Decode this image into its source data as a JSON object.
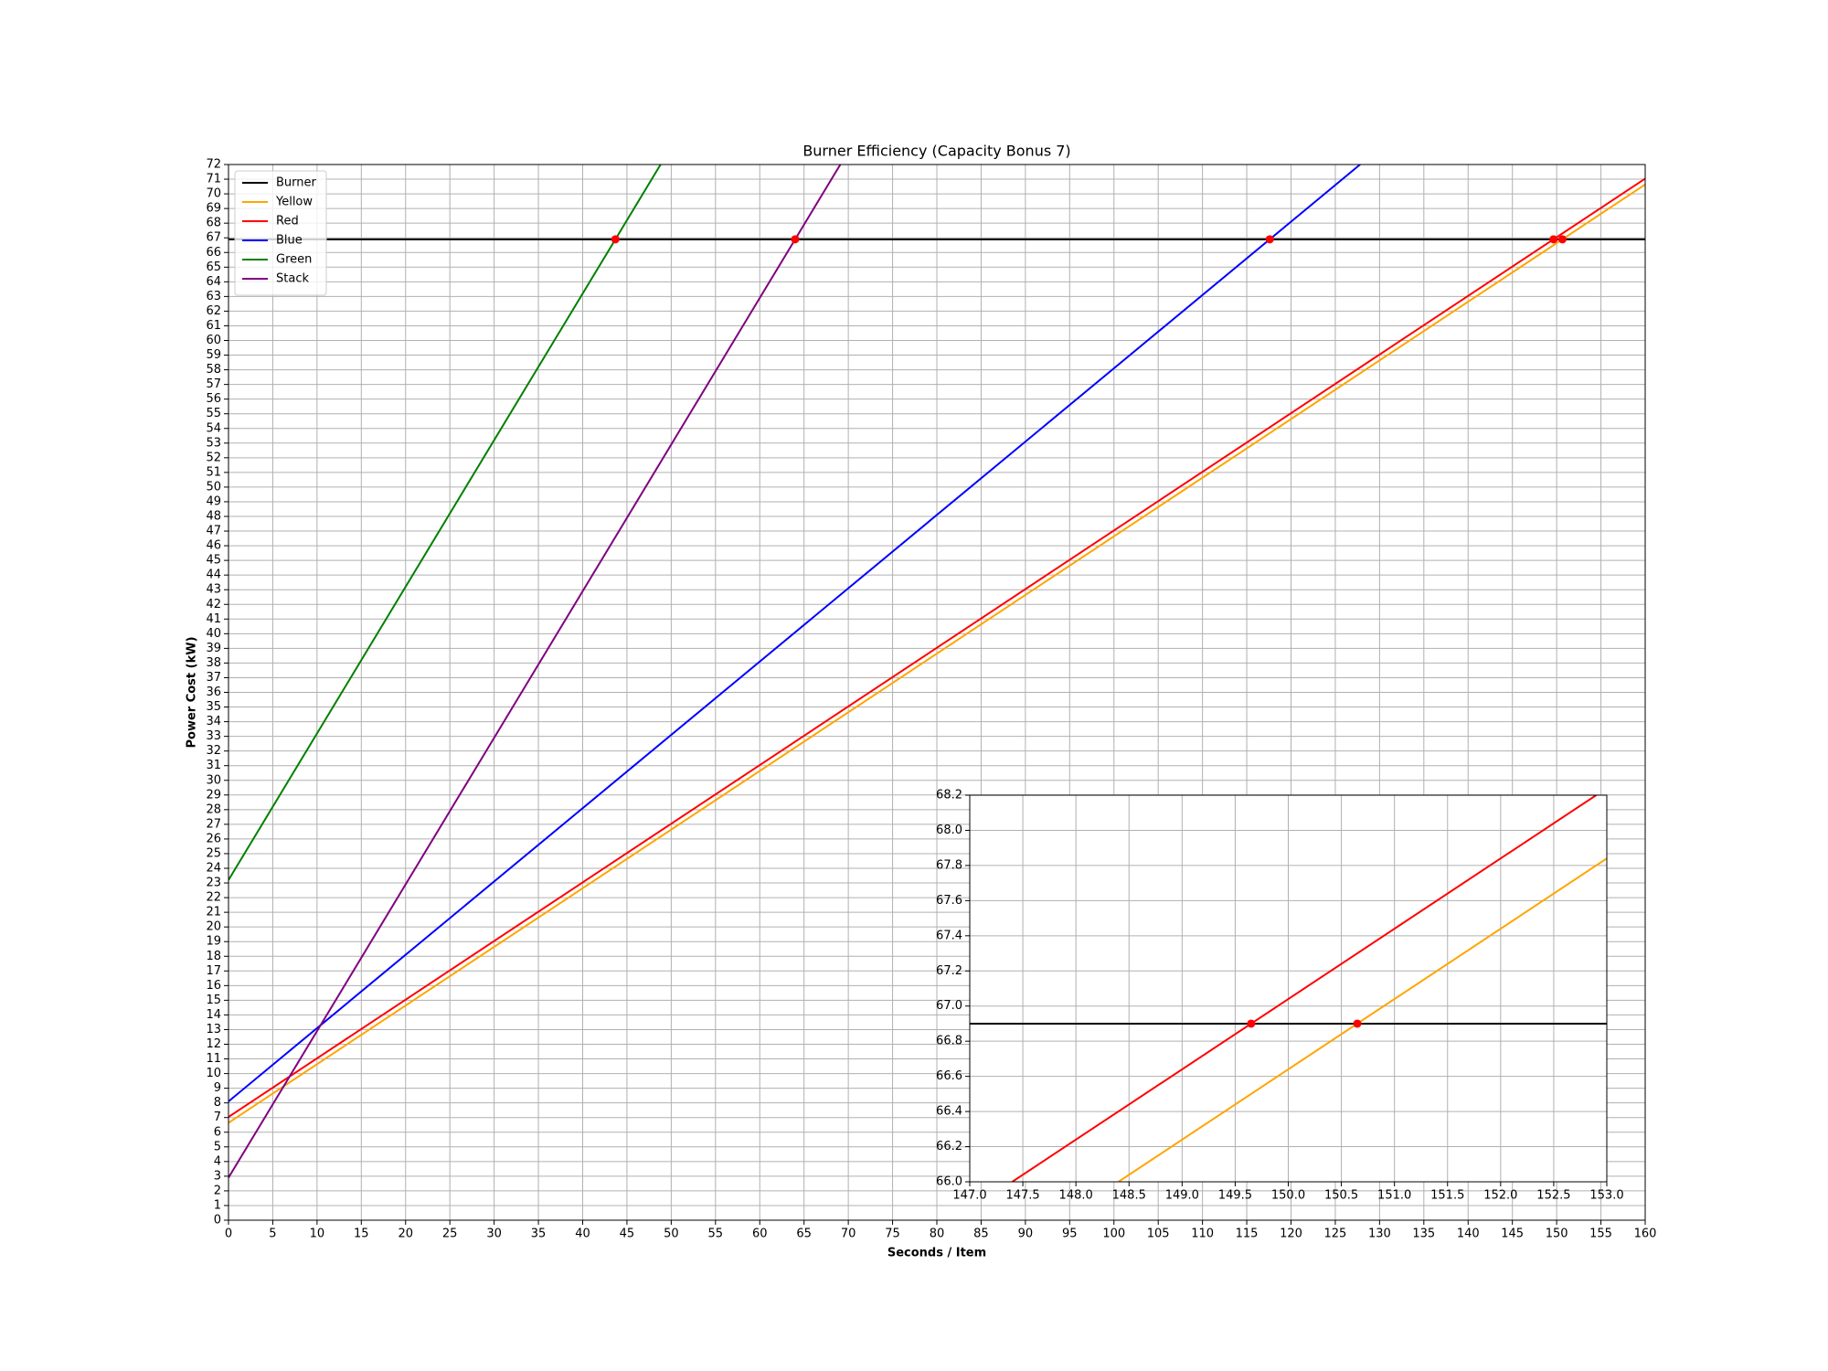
{
  "chart_data": [
    {
      "type": "line",
      "title": "Burner Efficiency (Capacity Bonus 7)",
      "xlabel": "Seconds / Item",
      "ylabel": "Power Cost (kW)",
      "xlim": [
        0,
        160
      ],
      "ylim": [
        0,
        72
      ],
      "grid": true,
      "legend": "upper left",
      "xticks": [
        0,
        5,
        10,
        15,
        20,
        25,
        30,
        35,
        40,
        45,
        50,
        55,
        60,
        65,
        70,
        75,
        80,
        85,
        90,
        95,
        100,
        105,
        110,
        115,
        120,
        125,
        130,
        135,
        140,
        145,
        150,
        155,
        160
      ],
      "yticks": [
        0,
        1,
        2,
        3,
        4,
        5,
        6,
        7,
        8,
        9,
        10,
        11,
        12,
        13,
        14,
        15,
        16,
        17,
        18,
        19,
        20,
        21,
        22,
        23,
        24,
        25,
        26,
        27,
        28,
        29,
        30,
        31,
        32,
        33,
        34,
        35,
        36,
        37,
        38,
        39,
        40,
        41,
        42,
        43,
        44,
        45,
        46,
        47,
        48,
        49,
        50,
        51,
        52,
        53,
        54,
        55,
        56,
        57,
        58,
        59,
        60,
        61,
        62,
        63,
        64,
        65,
        66,
        67,
        68,
        69,
        70,
        71,
        72
      ],
      "series": [
        {
          "name": "Burner",
          "color": "#000000",
          "x": [
            0,
            160
          ],
          "values": [
            66.9,
            66.9
          ]
        },
        {
          "name": "Yellow",
          "color": "#ffa500",
          "x": [
            0,
            160
          ],
          "values": [
            6.64,
            70.64
          ]
        },
        {
          "name": "Red",
          "color": "#ff0000",
          "x": [
            0,
            160
          ],
          "values": [
            7.04,
            71.04
          ]
        },
        {
          "name": "Blue",
          "color": "#0000ff",
          "x": [
            0,
            127.8
          ],
          "values": [
            8.1,
            72
          ]
        },
        {
          "name": "Green",
          "color": "#008000",
          "x": [
            0,
            48.8
          ],
          "values": [
            23.2,
            72
          ]
        },
        {
          "name": "Stack",
          "color": "#800080",
          "x": [
            0,
            69.1
          ],
          "values": [
            2.9,
            72
          ]
        }
      ],
      "points": {
        "color": "#ff0000",
        "x": [
          43.7,
          64,
          117.6,
          149.65,
          150.65
        ],
        "y": [
          66.9,
          66.9,
          66.9,
          66.9,
          66.9
        ]
      }
    },
    {
      "type": "line",
      "xlim": [
        147,
        153
      ],
      "ylim": [
        66,
        68.2
      ],
      "grid": true,
      "xticks": [
        {
          "value": 147,
          "label": "147.0"
        },
        {
          "value": 147.5,
          "label": "147.5"
        },
        {
          "value": 148,
          "label": "148.0"
        },
        {
          "value": 148.5,
          "label": "148.5"
        },
        {
          "value": 149,
          "label": "149.0"
        },
        {
          "value": 149.5,
          "label": "149.5"
        },
        {
          "value": 150,
          "label": "150.0"
        },
        {
          "value": 150.5,
          "label": "150.5"
        },
        {
          "value": 151,
          "label": "151.0"
        },
        {
          "value": 151.5,
          "label": "151.5"
        },
        {
          "value": 152,
          "label": "152.0"
        },
        {
          "value": 152.5,
          "label": "152.5"
        },
        {
          "value": 153,
          "label": "153.0"
        }
      ],
      "yticks": [
        {
          "value": 66,
          "label": "66.0"
        },
        66.2,
        66.4,
        66.6,
        66.8,
        {
          "value": 67,
          "label": "67.0"
        },
        67.2,
        67.4,
        67.6,
        67.8,
        {
          "value": 68,
          "label": "68.0"
        },
        68.2
      ],
      "series": [
        {
          "color": "#000000",
          "x": [
            147,
            153
          ],
          "values": [
            66.9,
            66.9
          ]
        },
        {
          "color": "#ff0000",
          "x": [
            147.4,
            152.9
          ],
          "values": [
            66.0,
            68.2
          ]
        },
        {
          "color": "#ffa500",
          "x": [
            148.4,
            153
          ],
          "values": [
            66.0,
            67.84
          ]
        }
      ],
      "points": {
        "color": "#ff0000",
        "x": [
          149.65,
          150.65
        ],
        "y": [
          66.9,
          66.9
        ]
      }
    }
  ]
}
